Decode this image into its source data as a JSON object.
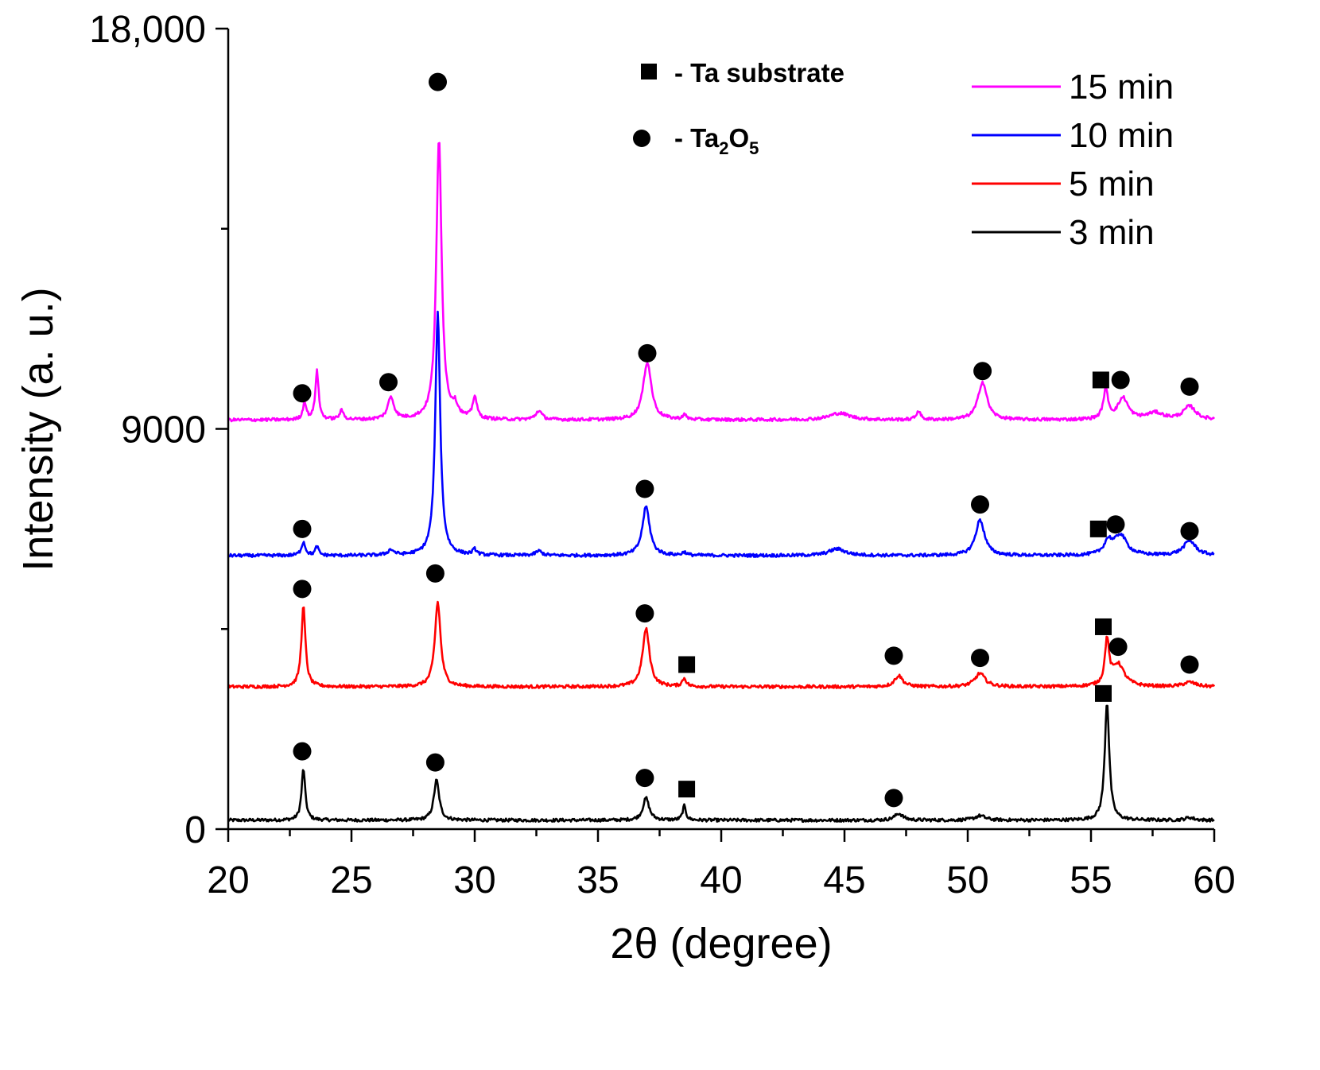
{
  "chart_data": {
    "type": "line",
    "title": "",
    "xlabel": "2θ (degree)",
    "ylabel": "Intensity (a. u.)",
    "xlim": [
      20,
      60
    ],
    "ylim": [
      0,
      18000
    ],
    "x_ticks": [
      "20",
      "25",
      "30",
      "35",
      "40",
      "45",
      "50",
      "55",
      "60"
    ],
    "y_ticks": [
      "0",
      "9000",
      "18,000"
    ],
    "grid": false,
    "legend_position": "top-right",
    "marker_legend": [
      {
        "symbol": "square",
        "label": "- Ta substrate"
      },
      {
        "symbol": "circle",
        "label_prefix": "- Ta",
        "sub1": "2",
        "label_mid": "O",
        "sub2": "5"
      }
    ],
    "series": [
      {
        "name": "15 min",
        "color": "#ff00ff",
        "baseline": 9200,
        "peaks": [
          [
            23.1,
            400,
            0.08
          ],
          [
            23.6,
            1100,
            0.08
          ],
          [
            24.6,
            200,
            0.1
          ],
          [
            26.6,
            500,
            0.15
          ],
          [
            28.55,
            6300,
            0.13
          ],
          [
            29.2,
            250,
            0.15
          ],
          [
            30.0,
            500,
            0.1
          ],
          [
            32.6,
            200,
            0.15
          ],
          [
            37.0,
            1300,
            0.2
          ],
          [
            38.5,
            100,
            0.1
          ],
          [
            44.8,
            150,
            0.5
          ],
          [
            48.0,
            200,
            0.1
          ],
          [
            50.6,
            850,
            0.22
          ],
          [
            55.6,
            650,
            0.12
          ],
          [
            56.3,
            480,
            0.25
          ],
          [
            57.6,
            150,
            0.4
          ],
          [
            59.0,
            300,
            0.3
          ]
        ],
        "markers": [
          {
            "symbol": "circle",
            "x": 23.0,
            "y": 9800
          },
          {
            "symbol": "circle",
            "x": 26.5,
            "y": 10050
          },
          {
            "symbol": "circle",
            "x": 28.5,
            "y": 16800
          },
          {
            "symbol": "circle",
            "x": 37.0,
            "y": 10700
          },
          {
            "symbol": "circle",
            "x": 50.6,
            "y": 10300
          },
          {
            "symbol": "square",
            "x": 55.4,
            "y": 10100
          },
          {
            "symbol": "circle",
            "x": 56.2,
            "y": 10100
          },
          {
            "symbol": "circle",
            "x": 59.0,
            "y": 9950
          }
        ]
      },
      {
        "name": "10 min",
        "color": "#0000ff",
        "baseline": 6150,
        "peaks": [
          [
            23.05,
            300,
            0.1
          ],
          [
            23.6,
            200,
            0.08
          ],
          [
            26.6,
            120,
            0.15
          ],
          [
            28.5,
            5450,
            0.12
          ],
          [
            30.0,
            120,
            0.1
          ],
          [
            32.6,
            100,
            0.15
          ],
          [
            36.95,
            1100,
            0.18
          ],
          [
            38.5,
            70,
            0.1
          ],
          [
            44.7,
            150,
            0.4
          ],
          [
            50.5,
            800,
            0.22
          ],
          [
            55.7,
            300,
            0.2
          ],
          [
            56.2,
            450,
            0.3
          ],
          [
            59.0,
            330,
            0.3
          ]
        ],
        "markers": [
          {
            "symbol": "circle",
            "x": 23.0,
            "y": 6750
          },
          {
            "symbol": "circle",
            "x": 36.9,
            "y": 7650
          },
          {
            "symbol": "circle",
            "x": 50.5,
            "y": 7300
          },
          {
            "symbol": "square",
            "x": 55.3,
            "y": 6750
          },
          {
            "symbol": "circle",
            "x": 56.0,
            "y": 6850
          },
          {
            "symbol": "circle",
            "x": 59.0,
            "y": 6700
          }
        ]
      },
      {
        "name": "5 min",
        "color": "#ff0000",
        "baseline": 3200,
        "peaks": [
          [
            23.05,
            1800,
            0.1
          ],
          [
            28.5,
            1900,
            0.14
          ],
          [
            36.95,
            1300,
            0.17
          ],
          [
            38.5,
            180,
            0.1
          ],
          [
            47.2,
            250,
            0.2
          ],
          [
            50.5,
            300,
            0.25
          ],
          [
            55.65,
            1000,
            0.1
          ],
          [
            56.1,
            500,
            0.3
          ],
          [
            59.0,
            100,
            0.3
          ]
        ],
        "markers": [
          {
            "symbol": "circle",
            "x": 23.0,
            "y": 5400
          },
          {
            "symbol": "circle",
            "x": 28.4,
            "y": 5750
          },
          {
            "symbol": "circle",
            "x": 36.9,
            "y": 4850
          },
          {
            "symbol": "square",
            "x": 38.6,
            "y": 3700
          },
          {
            "symbol": "circle",
            "x": 47.0,
            "y": 3900
          },
          {
            "symbol": "circle",
            "x": 50.5,
            "y": 3850
          },
          {
            "symbol": "square",
            "x": 55.5,
            "y": 4550
          },
          {
            "symbol": "circle",
            "x": 56.1,
            "y": 4100
          },
          {
            "symbol": "circle",
            "x": 59.0,
            "y": 3700
          }
        ]
      },
      {
        "name": "3 min",
        "color": "#000000",
        "baseline": 200,
        "peaks": [
          [
            23.05,
            1150,
            0.09
          ],
          [
            28.45,
            900,
            0.13
          ],
          [
            36.95,
            500,
            0.15
          ],
          [
            38.5,
            320,
            0.08
          ],
          [
            47.2,
            150,
            0.2
          ],
          [
            50.5,
            100,
            0.25
          ],
          [
            55.65,
            2650,
            0.11
          ],
          [
            59.0,
            60,
            0.2
          ]
        ],
        "markers": [
          {
            "symbol": "circle",
            "x": 23.0,
            "y": 1750
          },
          {
            "symbol": "circle",
            "x": 28.4,
            "y": 1500
          },
          {
            "symbol": "circle",
            "x": 36.9,
            "y": 1150
          },
          {
            "symbol": "square",
            "x": 38.6,
            "y": 900
          },
          {
            "symbol": "circle",
            "x": 47.0,
            "y": 700
          },
          {
            "symbol": "square",
            "x": 55.5,
            "y": 3050
          }
        ]
      }
    ]
  }
}
